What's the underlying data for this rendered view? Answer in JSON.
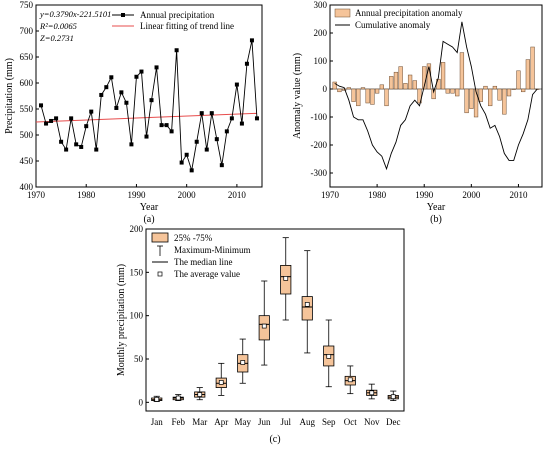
{
  "chart_data": [
    {
      "type": "line",
      "caption": "(a)",
      "xlabel": "Year",
      "ylabel": "Precipitation (mm)",
      "xlim": [
        1970,
        2015
      ],
      "ylim": [
        400,
        750
      ],
      "xticks": [
        1970,
        1980,
        1990,
        2000,
        2010
      ],
      "yticks": [
        400,
        450,
        500,
        550,
        600,
        650,
        700,
        750
      ],
      "annotations": [
        "y=0.3790x-221.5101",
        "R²=0.0065",
        "Z=0.2731"
      ],
      "legend_position": "top-center",
      "series": [
        {
          "name": "Annual precipitation",
          "color": "#000000",
          "marker": "square",
          "x": [
            1971,
            1972,
            1973,
            1974,
            1975,
            1976,
            1977,
            1978,
            1979,
            1980,
            1981,
            1982,
            1983,
            1984,
            1985,
            1986,
            1987,
            1988,
            1989,
            1990,
            1991,
            1992,
            1993,
            1994,
            1995,
            1996,
            1997,
            1998,
            1999,
            2000,
            2001,
            2002,
            2003,
            2004,
            2005,
            2006,
            2007,
            2008,
            2009,
            2010,
            2011,
            2012,
            2013,
            2014
          ],
          "y": [
            557,
            522,
            527,
            532,
            487,
            472,
            532,
            482,
            477,
            517,
            545,
            472,
            577,
            592,
            611,
            552,
            582,
            562,
            482,
            612,
            622,
            497,
            567,
            630,
            519,
            519,
            507,
            663,
            447,
            462,
            432,
            487,
            542,
            472,
            542,
            492,
            442,
            507,
            532,
            597,
            522,
            637,
            682,
            532
          ]
        },
        {
          "name": "Linear fitting of trend line",
          "color": "#e74c4c",
          "type": "line",
          "x": [
            1970,
            2014
          ],
          "y": [
            525,
            541.7
          ]
        }
      ]
    },
    {
      "type": "bar",
      "caption": "(b)",
      "xlabel": "Year",
      "ylabel": "Anomaly value (mm)",
      "xlim": [
        1970,
        2015
      ],
      "ylim": [
        -350,
        300
      ],
      "xticks": [
        1970,
        1980,
        1990,
        2000,
        2010
      ],
      "yticks": [
        -300,
        -200,
        -100,
        0,
        100,
        200,
        300
      ],
      "legend_position": "top-left",
      "series": [
        {
          "name": "Annual precipitation anomaly",
          "color": "#f5c49a",
          "type": "bar",
          "x": [
            1971,
            1972,
            1973,
            1974,
            1975,
            1976,
            1977,
            1978,
            1979,
            1980,
            1981,
            1982,
            1983,
            1984,
            1985,
            1986,
            1987,
            1988,
            1989,
            1990,
            1991,
            1992,
            1993,
            1994,
            1995,
            1996,
            1997,
            1998,
            1999,
            2000,
            2001,
            2002,
            2003,
            2004,
            2005,
            2006,
            2007,
            2008,
            2009,
            2010,
            2011,
            2012,
            2013,
            2014
          ],
          "y": [
            25,
            -10,
            -5,
            5,
            -45,
            -60,
            5,
            -50,
            -55,
            -15,
            15,
            -60,
            45,
            60,
            80,
            20,
            50,
            30,
            -50,
            80,
            90,
            -35,
            35,
            95,
            -15,
            -15,
            -25,
            130,
            -85,
            -70,
            -100,
            -45,
            10,
            -60,
            10,
            -40,
            -90,
            -25,
            0,
            65,
            -10,
            105,
            150,
            0
          ]
        },
        {
          "name": "Cumulative anomaly",
          "color": "#000000",
          "type": "line",
          "x": [
            1971,
            1972,
            1973,
            1974,
            1975,
            1976,
            1977,
            1978,
            1979,
            1980,
            1981,
            1982,
            1983,
            1984,
            1985,
            1986,
            1987,
            1988,
            1989,
            1990,
            1991,
            1992,
            1993,
            1994,
            1995,
            1996,
            1997,
            1998,
            1999,
            2000,
            2001,
            2002,
            2003,
            2004,
            2005,
            2006,
            2007,
            2008,
            2009,
            2010,
            2011,
            2012,
            2013,
            2014
          ],
          "y": [
            20,
            10,
            5,
            -40,
            -100,
            -110,
            -110,
            -150,
            -200,
            -225,
            -240,
            -285,
            -230,
            -190,
            -130,
            -110,
            -60,
            -40,
            -60,
            10,
            80,
            -10,
            40,
            170,
            160,
            150,
            130,
            240,
            150,
            80,
            -10,
            -60,
            -90,
            -140,
            -130,
            -170,
            -230,
            -255,
            -255,
            -200,
            -160,
            -110,
            -20,
            0
          ]
        }
      ]
    },
    {
      "type": "box",
      "caption": "(c)",
      "xlabel": "",
      "ylabel": "Monthly precipitation (mm)",
      "ylim": [
        -10,
        200
      ],
      "yticks": [
        0,
        50,
        100,
        150,
        200
      ],
      "categories": [
        "Jan",
        "Feb",
        "Mar",
        "Apr",
        "May",
        "Jun",
        "Jul",
        "Aug",
        "Sep",
        "Oct",
        "Nov",
        "Dec"
      ],
      "legend_position": "top-left",
      "legend": [
        "25% -75%",
        "Maximum-Minimum",
        "The median line",
        "The average value"
      ],
      "box_color": "#f5c49a",
      "stats": [
        {
          "min": 1,
          "q1": 2,
          "median": 3,
          "q3": 5,
          "max": 7,
          "mean": 3.5
        },
        {
          "min": 2,
          "q1": 3,
          "median": 5,
          "q3": 6,
          "max": 9,
          "mean": 5
        },
        {
          "min": 3,
          "q1": 6,
          "median": 9,
          "q3": 12,
          "max": 17,
          "mean": 9
        },
        {
          "min": 8,
          "q1": 17,
          "median": 22,
          "q3": 28,
          "max": 45,
          "mean": 23
        },
        {
          "min": 22,
          "q1": 35,
          "median": 45,
          "q3": 55,
          "max": 73,
          "mean": 46
        },
        {
          "min": 43,
          "q1": 72,
          "median": 90,
          "q3": 100,
          "max": 140,
          "mean": 88
        },
        {
          "min": 95,
          "q1": 125,
          "median": 145,
          "q3": 158,
          "max": 190,
          "mean": 143
        },
        {
          "min": 57,
          "q1": 95,
          "median": 110,
          "q3": 122,
          "max": 175,
          "mean": 113
        },
        {
          "min": 18,
          "q1": 42,
          "median": 55,
          "q3": 65,
          "max": 95,
          "mean": 53
        },
        {
          "min": 10,
          "q1": 20,
          "median": 25,
          "q3": 30,
          "max": 42,
          "mean": 26
        },
        {
          "min": 4,
          "q1": 8,
          "median": 11,
          "q3": 14,
          "max": 21,
          "mean": 11
        },
        {
          "min": 2,
          "q1": 4,
          "median": 6,
          "q3": 8,
          "max": 13,
          "mean": 6.5
        }
      ]
    }
  ]
}
